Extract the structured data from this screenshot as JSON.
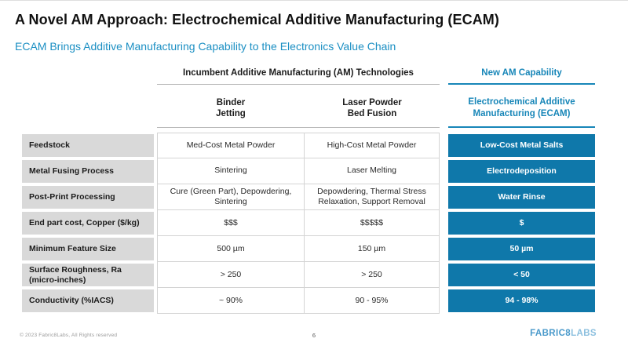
{
  "slide": {
    "title": "A Novel AM Approach: Electrochemical Additive Manufacturing (ECAM)",
    "subtitle": "ECAM Brings Additive Manufacturing Capability to the Electronics Value Chain"
  },
  "table": {
    "group_headers": {
      "incumbent": "Incumbent Additive Manufacturing (AM) Technologies",
      "new_capability": "New AM Capability"
    },
    "columns": [
      {
        "line1": "Binder",
        "line2": "Jetting"
      },
      {
        "line1": "Laser Powder",
        "line2": "Bed Fusion"
      },
      {
        "line1": "Electrochemical Additive",
        "line2": "Manufacturing (ECAM)"
      }
    ],
    "rows": [
      {
        "label": "Feedstock",
        "binder_jetting": "Med-Cost Metal Powder",
        "laser_pbf": "High-Cost Metal Powder",
        "ecam": "Low-Cost Metal Salts"
      },
      {
        "label": "Metal Fusing Process",
        "binder_jetting": "Sintering",
        "laser_pbf": "Laser Melting",
        "ecam": "Electrodeposition"
      },
      {
        "label": "Post-Print Processing",
        "binder_jetting": "Cure (Green Part), Depowdering, Sintering",
        "laser_pbf": "Depowdering, Thermal Stress Relaxation, Support Removal",
        "ecam": "Water Rinse"
      },
      {
        "label": "End part cost, Copper ($/kg)",
        "binder_jetting": "$$$",
        "laser_pbf": "$$$$$",
        "ecam": "$"
      },
      {
        "label": "Minimum Feature Size",
        "binder_jetting": "500 µm",
        "laser_pbf": "150 µm",
        "ecam": "50 µm"
      },
      {
        "label": "Surface Roughness, Ra (micro-inches)",
        "binder_jetting": "> 250",
        "laser_pbf": "> 250",
        "ecam": "< 50"
      },
      {
        "label": "Conductivity (%IACS)",
        "binder_jetting": "~ 90%",
        "laser_pbf": "90 - 95%",
        "ecam": "94 - 98%"
      }
    ]
  },
  "footer": {
    "copyright": "© 2023 Fabric8Labs, All Rights reserved",
    "page_number": "6",
    "logo_part1": "FABRIC8",
    "logo_part2": "LABS"
  },
  "colors": {
    "accent_teal": "#1786b8",
    "ecam_cell_bg": "#0f78aa",
    "label_chip_gray": "#d9d9d9",
    "subtitle_teal": "#1b8fc3"
  }
}
